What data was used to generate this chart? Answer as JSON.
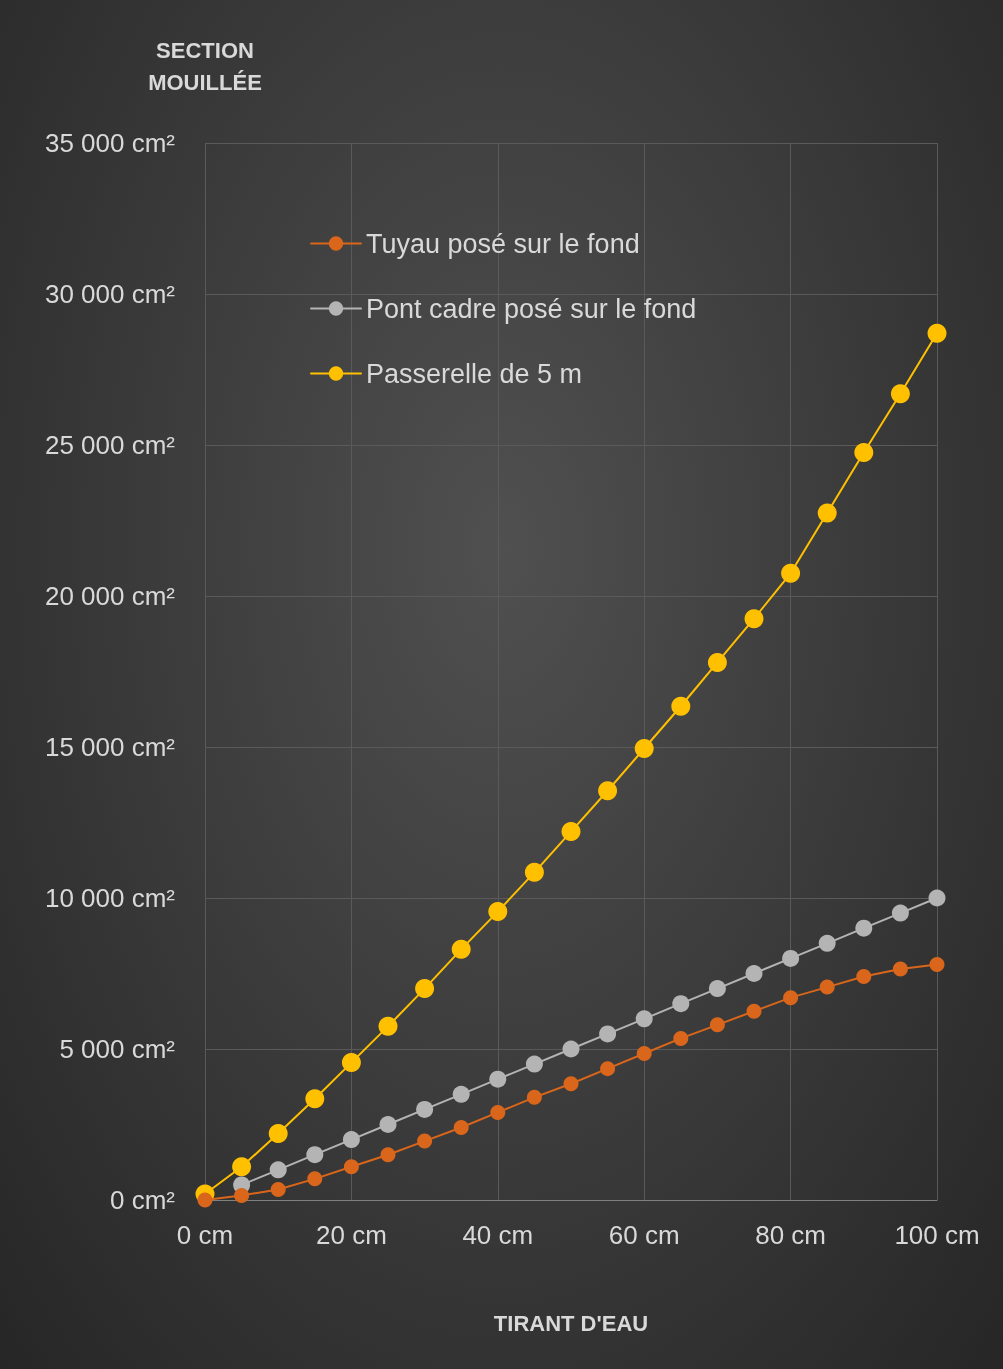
{
  "chart_data": {
    "type": "line",
    "ylabel": "SECTION\nMOUILLÉE",
    "xlabel": "TIRANT D'EAU",
    "x": [
      0,
      5,
      10,
      15,
      20,
      25,
      30,
      35,
      40,
      45,
      50,
      55,
      60,
      65,
      70,
      75,
      80,
      85,
      90,
      95,
      100
    ],
    "series": [
      {
        "name": "Tuyau posé sur le fond",
        "color": "#d9661a",
        "values": [
          0,
          150,
          350,
          700,
          1100,
          1500,
          1950,
          2400,
          2900,
          3400,
          3850,
          4350,
          4850,
          5350,
          5800,
          6250,
          6700,
          7050,
          7400,
          7650,
          7800
        ]
      },
      {
        "name": "Pont cadre posé sur le fond",
        "color": "#b4b4b4",
        "values": [
          null,
          500,
          1000,
          1500,
          2000,
          2500,
          3000,
          3500,
          4000,
          4500,
          5000,
          5500,
          6000,
          6500,
          7000,
          7500,
          8000,
          8500,
          9000,
          9500,
          10000
        ]
      },
      {
        "name": "Passerelle de 5 m",
        "color": "#ffc000",
        "values": [
          200,
          1100,
          2200,
          3350,
          4550,
          5750,
          7000,
          8300,
          9550,
          10850,
          12200,
          13550,
          14950,
          16350,
          17800,
          19250,
          20750,
          22750,
          24750,
          26700,
          28700
        ]
      }
    ],
    "xlim": [
      0,
      100
    ],
    "xticks": [
      {
        "value": 0,
        "label": "0 cm"
      },
      {
        "value": 20,
        "label": "20 cm"
      },
      {
        "value": 40,
        "label": "40 cm"
      },
      {
        "value": 60,
        "label": "60 cm"
      },
      {
        "value": 80,
        "label": "80 cm"
      },
      {
        "value": 100,
        "label": "100 cm"
      }
    ],
    "ylim": [
      0,
      35000
    ],
    "yticks": [
      {
        "value": 0,
        "label": "0 cm²"
      },
      {
        "value": 5000,
        "label": "5 000 cm²"
      },
      {
        "value": 10000,
        "label": "10 000 cm²"
      },
      {
        "value": 15000,
        "label": "15 000 cm²"
      },
      {
        "value": 20000,
        "label": "20 000 cm²"
      },
      {
        "value": 25000,
        "label": "25 000 cm²"
      },
      {
        "value": 30000,
        "label": "30 000 cm²"
      },
      {
        "value": 35000,
        "label": "35 000 cm²"
      }
    ],
    "grid": true,
    "legend": "top left",
    "marker": "circle",
    "line_style": "solid"
  }
}
